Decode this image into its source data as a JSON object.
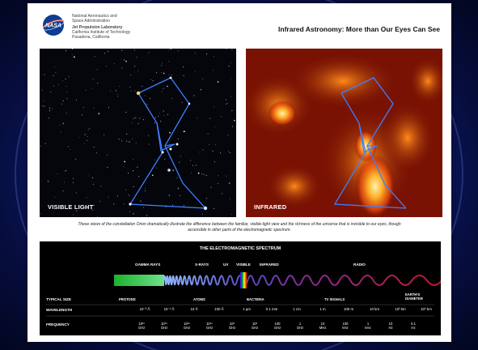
{
  "header": {
    "org_lines": [
      "National Aeronautics and",
      "Space Administration",
      "Jet Propulsion Laboratory",
      "California Institute of Technology",
      "Pasadena, California"
    ],
    "logo_text": "NASA",
    "title": "Infrared Astronomy: More than Our Eyes Can See"
  },
  "panels": {
    "visible_label": "VISIBLE LIGHT",
    "infrared_label": "INFRARED"
  },
  "caption": "These views of the constellation Orion dramatically illustrate the difference between the familiar, visible-light view and the richness of the universe that is invisible to our eyes, though accessible in other parts of the electromagnetic spectrum.",
  "spectrum": {
    "title": "THE ELECTROMAGNETIC SPECTRUM",
    "bands": [
      "GAMMA RAYS",
      "X-RAYS",
      "UV",
      "VISIBLE",
      "INFRARED",
      "RADIO"
    ],
    "row_labels": [
      "TYPICAL SIZE",
      "WAVELENGTH",
      "FREQUENCY"
    ],
    "typical_sizes": [
      "PROTONS",
      "ATOMS",
      "BACTERIA",
      "TV SIGNALS",
      "EARTH'S DIAMETER"
    ],
    "wavelengths": [
      "10⁻³ Å",
      "10⁻¹ Å",
      "10 Å",
      "100 Å",
      "1 µm",
      "0.1 mm",
      "1 cm",
      "1 m",
      "100 m",
      "10 km",
      "10³ km",
      "10⁵ km"
    ],
    "frequencies": [
      {
        "value": "10²¹",
        "unit": "GHz"
      },
      {
        "value": "10¹⁹",
        "unit": "GHz"
      },
      {
        "value": "10¹⁶",
        "unit": "GHz"
      },
      {
        "value": "10¹⁴",
        "unit": "GHz"
      },
      {
        "value": "10⁵",
        "unit": "GHz"
      },
      {
        "value": "10³",
        "unit": "GHz"
      },
      {
        "value": "100",
        "unit": "GHz"
      },
      {
        "value": "1",
        "unit": "GHz"
      },
      {
        "value": "10",
        "unit": "MHz"
      },
      {
        "value": "100",
        "unit": "kHz"
      },
      {
        "value": "1",
        "unit": "kHz"
      },
      {
        "value": "10",
        "unit": "Hz"
      },
      {
        "value": "0.1",
        "unit": "Hz"
      }
    ]
  },
  "colors": {
    "constellation_line": "#3d7fff",
    "infrared_glow": "#ff9a1a",
    "spectrum_wave": "#c0182f"
  }
}
